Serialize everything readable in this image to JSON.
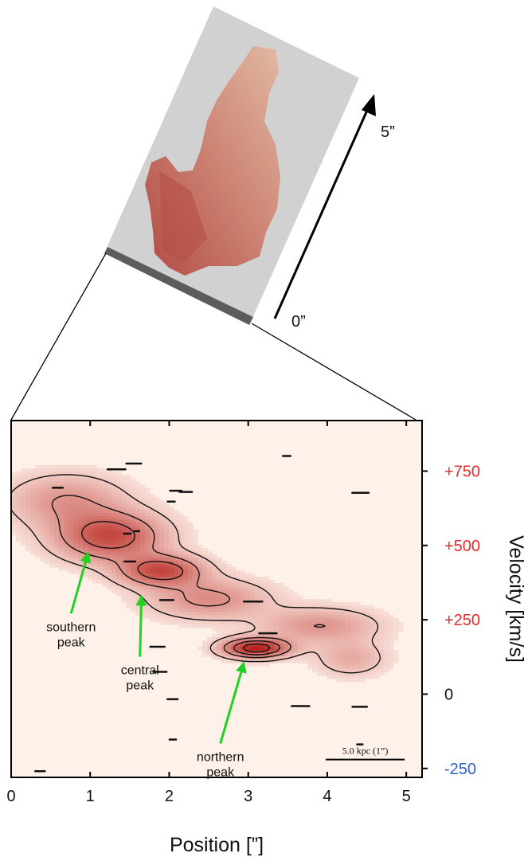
{
  "inset": {
    "arrow_top_label": "5”",
    "arrow_bottom_label": "0”"
  },
  "chart_data": {
    "type": "heatmap",
    "title": "",
    "xlabel": "Position [”]",
    "ylabel": "Velocity [km/s]",
    "xlim": [
      0,
      5.2
    ],
    "ylim": [
      -280,
      920
    ],
    "x_ticks": [
      {
        "value": 0,
        "label": "0"
      },
      {
        "value": 1,
        "label": "1"
      },
      {
        "value": 2,
        "label": "2"
      },
      {
        "value": 3,
        "label": "3"
      },
      {
        "value": 4,
        "label": "4"
      },
      {
        "value": 5,
        "label": "5"
      }
    ],
    "y_ticks": [
      {
        "value": 750,
        "label": "+750",
        "color": "#e32d2d"
      },
      {
        "value": 500,
        "label": "+500",
        "color": "#e32d2d"
      },
      {
        "value": 250,
        "label": "+250",
        "color": "#e32d2d"
      },
      {
        "value": 0,
        "label": "0",
        "color": "#111111"
      },
      {
        "value": -250,
        "label": "-250",
        "color": "#2f5fc8"
      }
    ],
    "emission_features": [
      {
        "x": 1.25,
        "v": 530,
        "sx": 0.45,
        "sv": 55,
        "amp": 0.75
      },
      {
        "x": 1.9,
        "v": 415,
        "sx": 0.35,
        "sv": 35,
        "amp": 0.75
      },
      {
        "x": 3.1,
        "v": 155,
        "sx": 0.28,
        "sv": 22,
        "amp": 1.0
      },
      {
        "x": 0.7,
        "v": 650,
        "sx": 0.5,
        "sv": 60,
        "amp": 0.35
      },
      {
        "x": 2.5,
        "v": 320,
        "sx": 0.5,
        "sv": 45,
        "amp": 0.4
      },
      {
        "x": 3.9,
        "v": 230,
        "sx": 0.5,
        "sv": 40,
        "amp": 0.35
      },
      {
        "x": 4.3,
        "v": 120,
        "sx": 0.3,
        "sv": 40,
        "amp": 0.25
      }
    ],
    "annotations": [
      {
        "label_lines": [
          "southern",
          "peak"
        ],
        "points_to": {
          "x": 0.98,
          "v": 480
        }
      },
      {
        "label_lines": [
          "central",
          "peak"
        ],
        "points_to": {
          "x": 1.65,
          "v": 335
        }
      },
      {
        "label_lines": [
          "northern",
          "peak"
        ],
        "points_to": {
          "x": 2.95,
          "v": 110
        }
      }
    ],
    "scale_bar": {
      "label": "5.0 kpc (1”)",
      "length": 1.0,
      "x_start": 3.98,
      "v": -220
    },
    "colors": {
      "annotation_arrow": "#22d022",
      "contour": "#111111",
      "low": "#fdeee6",
      "high": "#b7221c"
    }
  }
}
